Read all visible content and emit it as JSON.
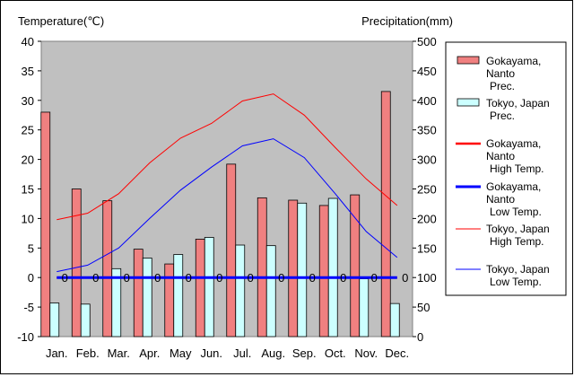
{
  "chart_data": {
    "type": "bar",
    "categories": [
      "Jan.",
      "Feb.",
      "Mar.",
      "Apr.",
      "May",
      "Jun.",
      "Jul.",
      "Aug.",
      "Sep.",
      "Oct.",
      "Nov.",
      "Dec."
    ],
    "left_axis": {
      "label": "Temperature(℃)",
      "ylim": [
        -10,
        40
      ],
      "ticks": [
        -10,
        -5,
        0,
        5,
        10,
        15,
        20,
        25,
        30,
        35,
        40
      ]
    },
    "right_axis": {
      "label": "Precipitation(mm)",
      "ylim": [
        0,
        500
      ],
      "ticks": [
        0,
        50,
        100,
        150,
        200,
        250,
        300,
        350,
        400,
        450,
        500
      ]
    },
    "grid": false,
    "legend_position": "right",
    "bar_series": [
      {
        "name": "Gokayama, Nanto Prec.",
        "legend_lines": [
          "Gokayama,",
          "Nanto",
          "Prec."
        ],
        "color": "#f08080",
        "values": [
          380,
          250,
          230,
          148,
          123,
          165,
          292,
          235,
          231,
          222,
          240,
          415
        ]
      },
      {
        "name": "Tokyo, Japan Prec.",
        "legend_lines": [
          "Tokyo, Japan",
          "Prec."
        ],
        "color": "#ccffff",
        "values": [
          57,
          55,
          115,
          133,
          139,
          168,
          155,
          154,
          226,
          234,
          98,
          56
        ]
      }
    ],
    "line_series": [
      {
        "name": "Gokayama, Nanto High Temp.",
        "legend_lines": [
          "Gokayama,",
          "Nanto",
          "High Temp."
        ],
        "color": "#ff0000",
        "width": 2.5,
        "values": [
          0,
          0,
          0,
          0,
          0,
          0,
          0,
          0,
          0,
          0,
          0,
          0
        ]
      },
      {
        "name": "Gokayama, Nanto Low Temp.",
        "legend_lines": [
          "Gokayama,",
          "Nanto",
          "Low Temp."
        ],
        "color": "#0000ff",
        "width": 3,
        "values": [
          0,
          0,
          0,
          0,
          0,
          0,
          0,
          0,
          0,
          0,
          0,
          0
        ]
      },
      {
        "name": "Tokyo, Japan High Temp.",
        "legend_lines": [
          "Tokyo, Japan",
          "High Temp."
        ],
        "color": "#ff0000",
        "width": 1,
        "values": [
          9.8,
          10.9,
          14.2,
          19.4,
          23.6,
          26.1,
          29.9,
          31.1,
          27.5,
          22.0,
          16.7,
          12.2
        ]
      },
      {
        "name": "Tokyo, Japan Low Temp.",
        "legend_lines": [
          "Tokyo, Japan",
          "Low Temp."
        ],
        "color": "#0000ff",
        "width": 1,
        "values": [
          1.0,
          2.1,
          5.0,
          10.0,
          14.8,
          18.7,
          22.3,
          23.5,
          20.3,
          14.2,
          7.8,
          3.4
        ]
      }
    ],
    "point_labels": {
      "text": "0",
      "months": [
        "Jan.",
        "Feb.",
        "Mar.",
        "Apr.",
        "May",
        "Jun.",
        "Jul.",
        "Aug.",
        "Sep.",
        "Oct.",
        "Nov.",
        "Dec."
      ]
    }
  }
}
